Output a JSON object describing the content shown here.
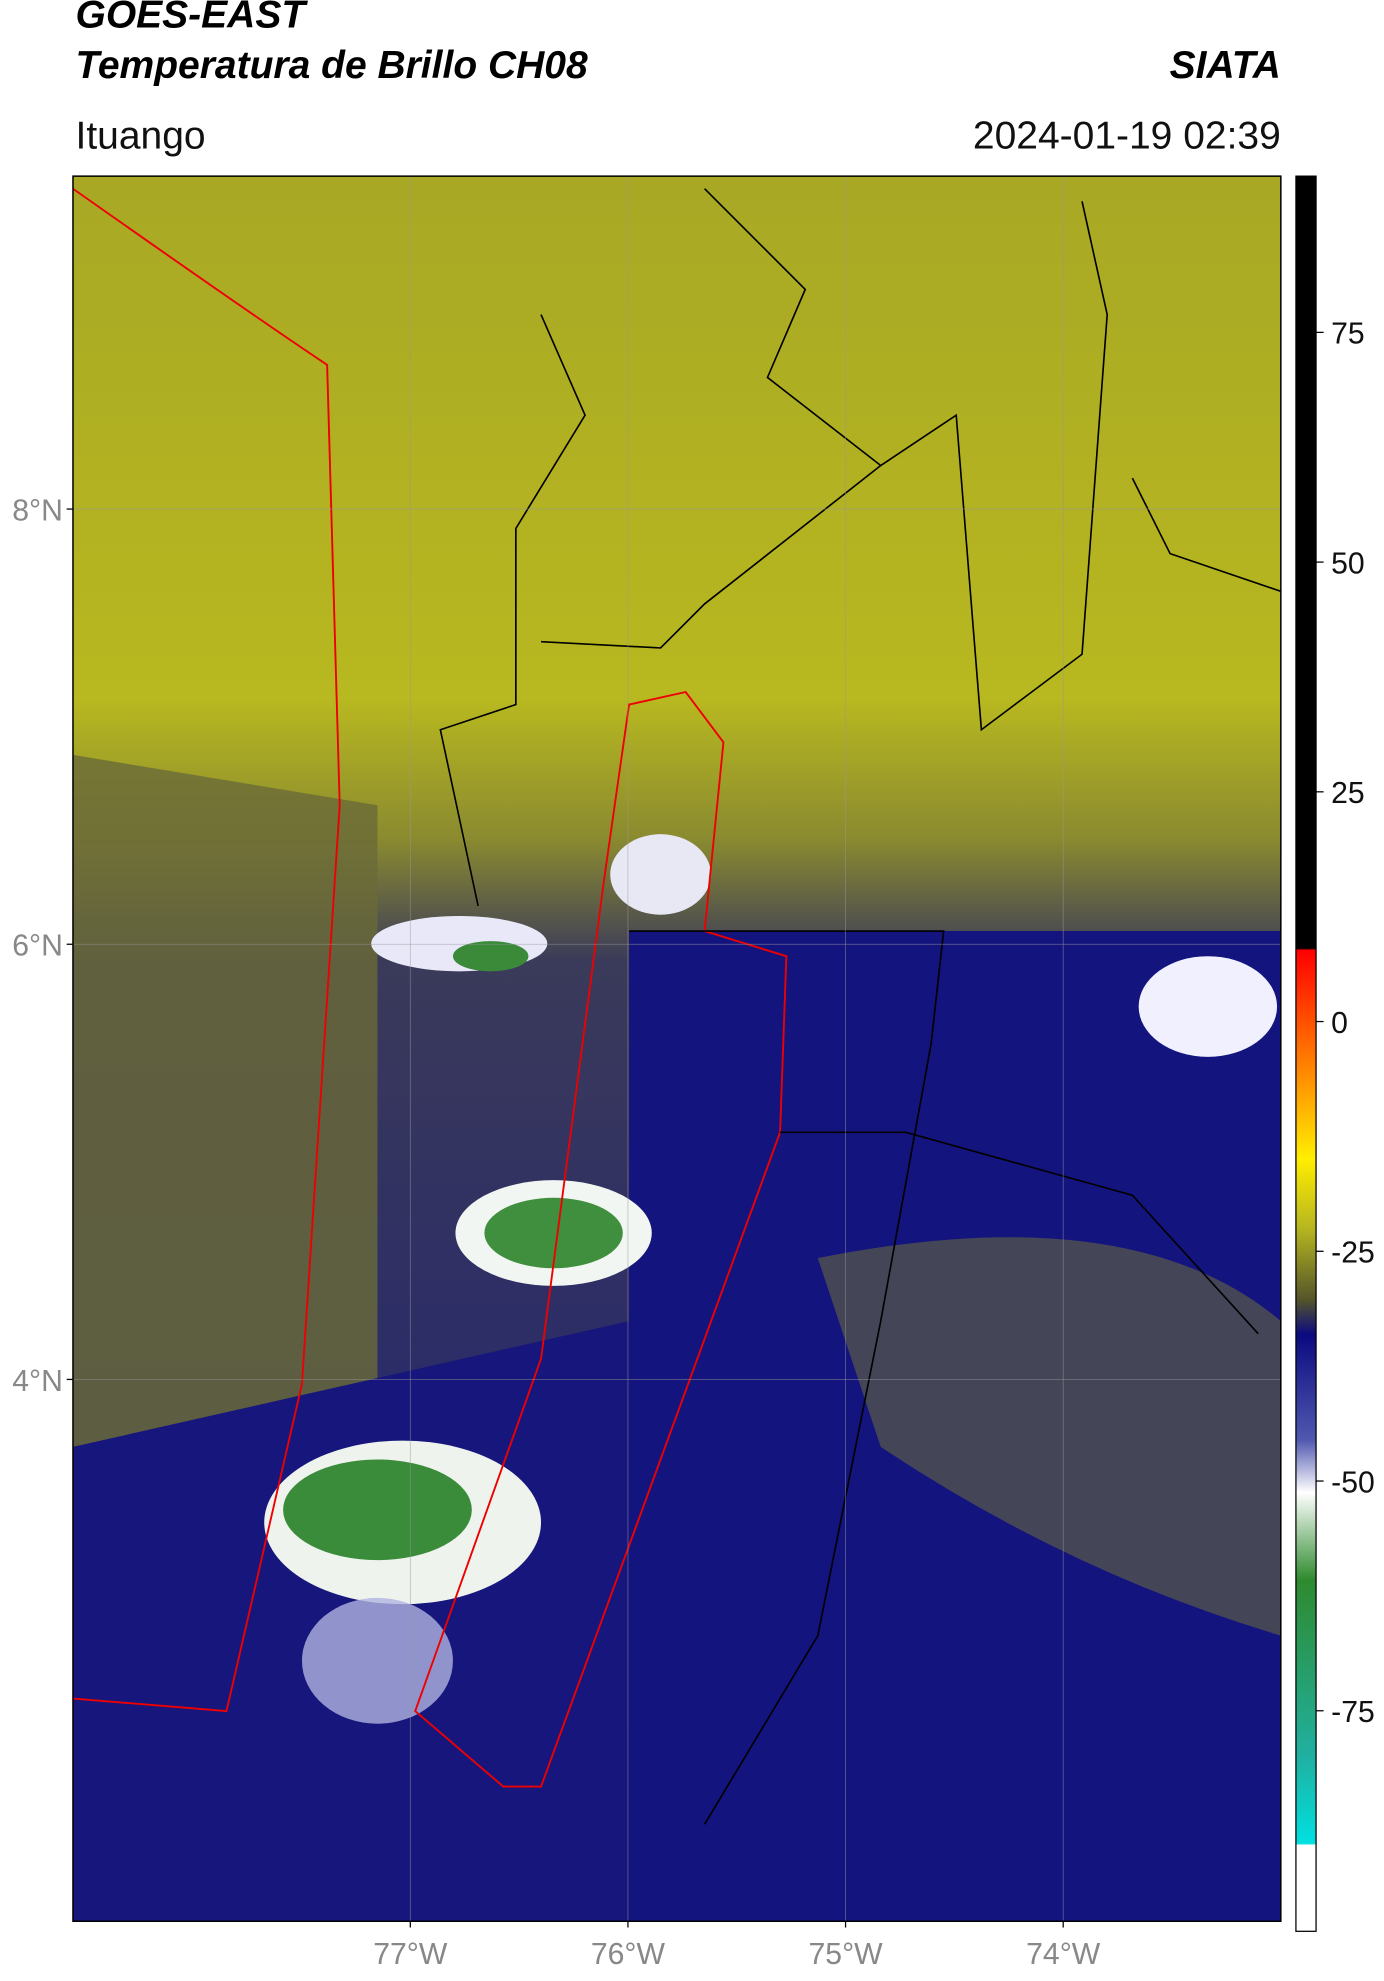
{
  "header": {
    "title": "GOES-EAST",
    "subtitle": "Temperatura de Brillo CH08",
    "brand": "SIATA",
    "location": "Ituango",
    "datetime": "2024-01-19 02:39"
  },
  "map": {
    "lonlim": [
      -78.55,
      -73.0
    ],
    "latlim": [
      1.51,
      9.53
    ],
    "lonticks": [
      {
        "value": -77,
        "label": "77°W"
      },
      {
        "value": -76,
        "label": "76°W"
      },
      {
        "value": -75,
        "label": "75°W"
      },
      {
        "value": -74,
        "label": "74°W"
      }
    ],
    "latticks": [
      {
        "value": 8,
        "label": "8°N"
      },
      {
        "value": 6,
        "label": "6°N"
      },
      {
        "value": 4,
        "label": "4°N"
      }
    ],
    "grid": true
  },
  "colorbar": {
    "lim": [
      -99,
      92
    ],
    "ticks": [
      75,
      50,
      25,
      0,
      -25,
      -50,
      -75
    ]
  }
}
